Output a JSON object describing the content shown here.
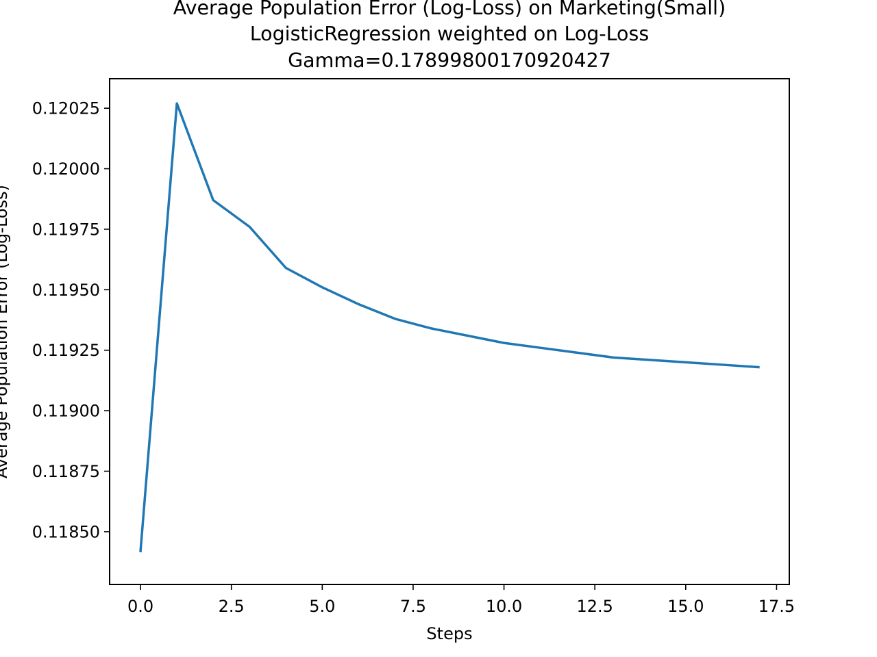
{
  "chart_data": {
    "type": "line",
    "title_lines": [
      "Average Population Error (Log-Loss) on Marketing(Small)",
      "LogisticRegression weighted on Log-Loss",
      "Gamma=0.17899800170920427"
    ],
    "xlabel": "Steps",
    "ylabel": "Average Population Error (Log-Loss)",
    "xlim": [
      -0.85,
      17.85
    ],
    "ylim": [
      0.118282,
      0.120372
    ],
    "xticks": [
      0.0,
      2.5,
      5.0,
      7.5,
      10.0,
      12.5,
      15.0,
      17.5
    ],
    "xtick_labels": [
      "0.0",
      "2.5",
      "5.0",
      "7.5",
      "10.0",
      "12.5",
      "15.0",
      "17.5"
    ],
    "yticks": [
      0.1185,
      0.11875,
      0.119,
      0.11925,
      0.1195,
      0.11975,
      0.12,
      0.12025
    ],
    "ytick_labels": [
      "0.11850",
      "0.11875",
      "0.11900",
      "0.11925",
      "0.11950",
      "0.11975",
      "0.12000",
      "0.12025"
    ],
    "grid": false,
    "series": [
      {
        "color": "#1f77b4",
        "x": [
          0,
          1,
          2,
          3,
          4,
          5,
          6,
          7,
          8,
          9,
          10,
          11,
          12,
          13,
          14,
          15,
          16,
          17
        ],
        "values": [
          0.11842,
          0.12027,
          0.11987,
          0.11976,
          0.11959,
          0.11951,
          0.11944,
          0.11938,
          0.11934,
          0.11931,
          0.11928,
          0.11926,
          0.11924,
          0.11922,
          0.11921,
          0.1192,
          0.11919,
          0.11918
        ]
      }
    ]
  }
}
